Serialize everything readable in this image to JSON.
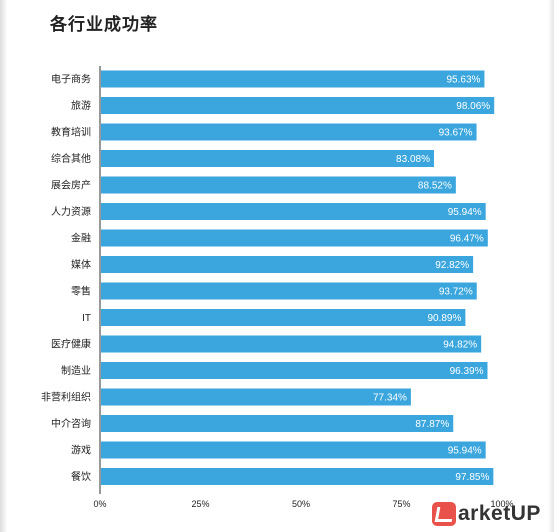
{
  "page": {
    "title": "各行业成功率"
  },
  "watermark": {
    "text": "arketUP",
    "logo_icon": "marketup-logo-icon",
    "color": "#e8524a"
  },
  "chart_data": {
    "type": "bar",
    "orientation": "horizontal",
    "title": "各行业成功率",
    "categories": [
      "电子商务",
      "旅游",
      "教育培训",
      "综合其他",
      "展会房产",
      "人力资源",
      "金融",
      "媒体",
      "零售",
      "IT",
      "医疗健康",
      "制造业",
      "非营利组织",
      "中介咨询",
      "游戏",
      "餐饮"
    ],
    "values": [
      95.63,
      98.06,
      93.67,
      83.08,
      88.52,
      95.94,
      96.47,
      92.82,
      93.72,
      90.89,
      94.82,
      96.39,
      77.34,
      87.87,
      95.94,
      97.85
    ],
    "value_labels": [
      "95.63%",
      "98.06%",
      "93.67%",
      "83.08%",
      "88.52%",
      "95.94%",
      "96.47%",
      "92.82%",
      "93.72%",
      "90.89%",
      "94.82%",
      "96.39%",
      "77.34%",
      "87.87%",
      "95.94%",
      "97.85%"
    ],
    "xlim": [
      0,
      100
    ],
    "x_ticks": [
      0,
      25,
      50,
      75,
      100
    ],
    "x_tick_labels": [
      "0%",
      "25%",
      "50%",
      "75%",
      "100%"
    ],
    "bar_color": "#3aa6dd",
    "grid": false,
    "legend": "none"
  }
}
